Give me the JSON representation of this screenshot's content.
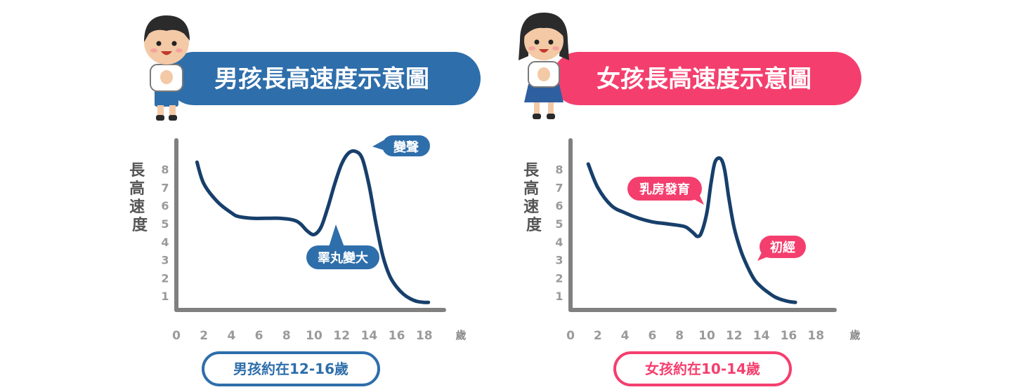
{
  "chart_data": [
    {
      "type": "line",
      "title": "男孩長高速度示意圖",
      "ylabel": "長高速度",
      "xlabel": "歲",
      "xlim": [
        0,
        20
      ],
      "ylim": [
        0,
        9
      ],
      "x_ticks": [
        "0",
        "2",
        "4",
        "6",
        "8",
        "10",
        "12",
        "14",
        "16",
        "18"
      ],
      "y_ticks": [
        "1",
        "2",
        "3",
        "4",
        "5",
        "6",
        "7",
        "8"
      ],
      "series": [
        {
          "x": [
            1.5,
            2.0,
            3.0,
            4.0,
            4.5,
            5.5,
            6.5,
            7.5,
            8.5,
            9.0,
            9.5,
            10.0,
            10.5,
            11.0,
            11.5,
            12.0,
            12.5,
            13.0,
            13.5,
            14.0,
            14.5,
            15.0,
            15.5,
            16.0,
            16.5,
            17.0,
            17.5,
            18.0,
            18.3
          ],
          "y": [
            8.4,
            7.2,
            6.2,
            5.6,
            5.4,
            5.3,
            5.3,
            5.3,
            5.2,
            5.0,
            4.6,
            4.4,
            4.8,
            5.9,
            7.2,
            8.3,
            8.9,
            9.0,
            8.6,
            7.1,
            5.0,
            3.2,
            2.1,
            1.5,
            1.1,
            0.85,
            0.7,
            0.65,
            0.65
          ]
        }
      ],
      "annotations": [
        {
          "text": "變聲",
          "x": 14.5,
          "y": 8.3
        },
        {
          "text": "睪丸變大",
          "x": 12.4,
          "y": 2.9
        }
      ],
      "footer": "男孩約在12-16歲",
      "accent": "#2e6eab"
    },
    {
      "type": "line",
      "title": "女孩長高速度示意圖",
      "ylabel": "長高速度",
      "xlabel": "歲",
      "xlim": [
        0,
        20
      ],
      "ylim": [
        0,
        9
      ],
      "x_ticks": [
        "0",
        "2",
        "4",
        "6",
        "8",
        "10",
        "12",
        "14",
        "16",
        "18"
      ],
      "y_ticks": [
        "1",
        "2",
        "3",
        "4",
        "5",
        "6",
        "7",
        "8"
      ],
      "series": [
        {
          "x": [
            1.3,
            2.0,
            3.0,
            4.0,
            5.0,
            6.0,
            7.0,
            8.0,
            8.5,
            9.0,
            9.3,
            9.6,
            10.0,
            10.3,
            10.6,
            11.0,
            11.3,
            11.6,
            12.0,
            12.5,
            13.0,
            13.5,
            14.0,
            14.5,
            15.0,
            15.5,
            16.0,
            16.5
          ],
          "y": [
            8.3,
            7.0,
            6.0,
            5.6,
            5.3,
            5.1,
            5.0,
            4.9,
            4.8,
            4.5,
            4.3,
            4.5,
            5.6,
            7.2,
            8.4,
            8.6,
            8.0,
            6.5,
            4.8,
            3.5,
            2.6,
            1.9,
            1.5,
            1.2,
            0.95,
            0.8,
            0.7,
            0.65
          ]
        }
      ],
      "annotations": [
        {
          "text": "乳房發育",
          "x": 7.0,
          "y": 6.8
        },
        {
          "text": "初經",
          "x": 15.5,
          "y": 3.2
        }
      ],
      "footer": "女孩約在10-14歲",
      "accent": "#f43f6e"
    }
  ]
}
